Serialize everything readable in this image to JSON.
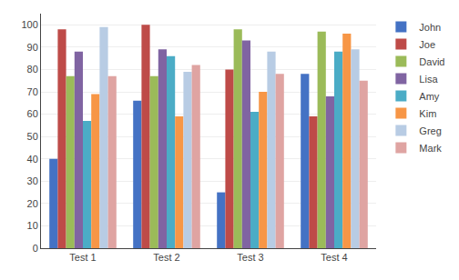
{
  "chart_data": {
    "type": "bar",
    "categories": [
      "Test 1",
      "Test 2",
      "Test 3",
      "Test 4"
    ],
    "series": [
      {
        "name": "John",
        "color": "#4472C4",
        "values": [
          40,
          66,
          25,
          78
        ]
      },
      {
        "name": "Joe",
        "color": "#BE4B48",
        "values": [
          98,
          100,
          80,
          59
        ]
      },
      {
        "name": "David",
        "color": "#9BBB59",
        "values": [
          77,
          77,
          98,
          97
        ]
      },
      {
        "name": "Lisa",
        "color": "#8064A2",
        "values": [
          88,
          89,
          93,
          68
        ]
      },
      {
        "name": "Amy",
        "color": "#4BACC6",
        "values": [
          57,
          86,
          61,
          88
        ]
      },
      {
        "name": "Kim",
        "color": "#F79646",
        "values": [
          69,
          59,
          70,
          96
        ]
      },
      {
        "name": "Greg",
        "color": "#B8CCE4",
        "values": [
          99,
          79,
          88,
          89
        ]
      },
      {
        "name": "Mark",
        "color": "#DFA4A2",
        "values": [
          77,
          82,
          78,
          75
        ]
      }
    ],
    "ylim": [
      0,
      105
    ],
    "yticks": [
      0,
      10,
      20,
      30,
      40,
      50,
      60,
      70,
      80,
      90,
      100
    ],
    "grid": true,
    "legend": "right"
  }
}
